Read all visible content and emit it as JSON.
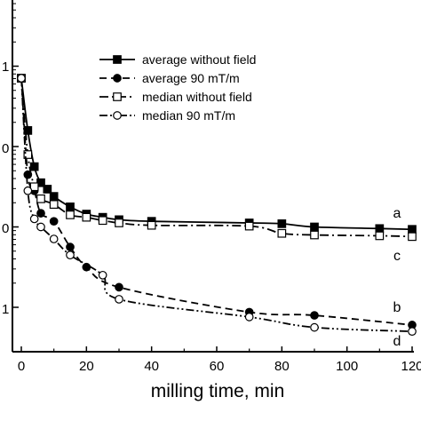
{
  "chart_data": {
    "type": "line",
    "title": "",
    "xlabel": "milling time, min",
    "ylabel": "",
    "x_ticks": [
      0,
      20,
      40,
      60,
      80,
      100,
      120
    ],
    "xlim": [
      0,
      120
    ],
    "y_scale": "log",
    "y_tick_labels": [
      "1",
      "0",
      "0",
      "1"
    ],
    "ylim_decades": [
      -1,
      3
    ],
    "grid": false,
    "legend": {
      "placement": "top-right",
      "entries": [
        "average without field",
        "average 90 mT/m",
        "median without field",
        "median 90 mT/m"
      ]
    },
    "series": [
      {
        "name": "average without field",
        "curve_label": "a",
        "line": "solid",
        "marker": "filled-square",
        "x": [
          0,
          2,
          4,
          6,
          8,
          10,
          15,
          20,
          25,
          30,
          40,
          70,
          80,
          90,
          110,
          120
        ],
        "y_decade": [
          1.85,
          1.2,
          0.75,
          0.55,
          0.47,
          0.38,
          0.25,
          0.16,
          0.12,
          0.09,
          0.07,
          0.05,
          0.04,
          0.0,
          -0.02,
          -0.03
        ]
      },
      {
        "name": "average 90 mT/m",
        "curve_label": "b",
        "line": "dashed",
        "marker": "filled-circle",
        "x": [
          0,
          2,
          4,
          6,
          10,
          15,
          20,
          30,
          70,
          90,
          120
        ],
        "y_decade": [
          1.85,
          0.65,
          0.45,
          0.17,
          0.07,
          -0.25,
          -0.5,
          -0.75,
          -1.06,
          -1.1,
          -1.22
        ],
        "y": [
          70,
          4.5,
          2.8,
          1.5,
          1.2,
          0.56,
          0.32,
          0.18,
          0.087,
          0.079,
          0.06
        ]
      },
      {
        "name": "median without field",
        "curve_label": "c",
        "line": "dash-dot",
        "marker": "open-square",
        "x": [
          0,
          2,
          4,
          6,
          10,
          15,
          20,
          25,
          30,
          40,
          70,
          80,
          90,
          110,
          120
        ],
        "y_decade": [
          1.85,
          0.9,
          0.5,
          0.35,
          0.28,
          0.15,
          0.12,
          0.08,
          0.05,
          0.02,
          0.01,
          -0.08,
          -0.1,
          -0.11,
          -0.12
        ],
        "y": [
          70,
          8,
          3.2,
          2.2,
          1.9,
          1.4,
          1.3,
          1.2,
          1.1,
          1.05,
          1.02,
          0.83,
          0.8,
          0.78,
          0.76
        ]
      },
      {
        "name": "median 90 mT/m",
        "curve_label": "d",
        "line": "dash-dot-dot",
        "marker": "open-circle",
        "x": [
          0,
          2,
          4,
          6,
          10,
          15,
          25,
          30,
          70,
          90,
          120
        ],
        "y_decade": [
          1.85,
          0.45,
          0.1,
          0.0,
          -0.15,
          -0.35,
          -0.6,
          -0.9,
          -1.12,
          -1.25,
          -1.3
        ],
        "y": [
          70,
          2.8,
          1.25,
          1.0,
          0.71,
          0.45,
          0.25,
          0.13,
          0.076,
          0.056,
          0.05
        ]
      }
    ]
  }
}
